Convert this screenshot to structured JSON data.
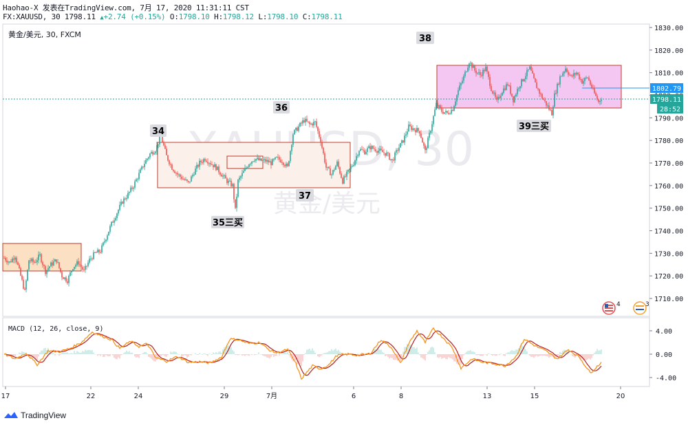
{
  "header": {
    "line1": "Haohao-X 发表在TradingView.com, 7月 17, 2020 11:31:11 CST",
    "symbol_line": "FX:XAUUSD, 30 1798.11",
    "change": "+2.74 (+0.15%)",
    "open_label": "O:",
    "open": "1798.10",
    "high_label": "H:",
    "high": "1798.12",
    "low_label": "L:",
    "low": "1798.10",
    "close_label": "C:",
    "close": "1798.11"
  },
  "pane_title": "黄金/美元, 30, FXCM",
  "watermark": {
    "symbol": "XAUUSD, 30",
    "name": "黄金/美元"
  },
  "price_labels": {
    "alert": "1802.79",
    "current": "1798.11",
    "countdown": "28:52"
  },
  "event_badges": [
    "4",
    "3"
  ],
  "annotations": [
    "34",
    "35三买",
    "36",
    "37",
    "38",
    "39三买"
  ],
  "macd_title": "MACD (12, 26, close, 9)",
  "footer_brand": "TradingView",
  "colors": {
    "up": "#26a69a",
    "down": "#ef5350",
    "box_orange": "#f5c08a",
    "box_pink": "#e879e6",
    "macd": "#f7931a",
    "signal": "#b71c1c"
  },
  "chart_data": [
    {
      "type": "candlestick",
      "title": "黄金/美元, 30, FXCM",
      "y_ticks": [
        "1830.00",
        "1820.00",
        "1810.00",
        "1800.00",
        "1790.00",
        "1780.00",
        "1770.00",
        "1760.00",
        "1750.00",
        "1740.00",
        "1730.00",
        "1720.00",
        "1710.00"
      ],
      "ylim": [
        1700,
        1832
      ],
      "x_ticks": [
        "17",
        "22",
        "24",
        "29",
        "7月",
        "6",
        "8",
        "13",
        "15",
        "20"
      ],
      "price_path": [
        [
          0,
          1728
        ],
        [
          4,
          1726
        ],
        [
          8,
          1729
        ],
        [
          12,
          1720
        ],
        [
          15,
          1713
        ],
        [
          18,
          1727
        ],
        [
          22,
          1726
        ],
        [
          26,
          1729
        ],
        [
          30,
          1722
        ],
        [
          34,
          1725
        ],
        [
          38,
          1727
        ],
        [
          42,
          1720
        ],
        [
          46,
          1718
        ],
        [
          50,
          1724
        ],
        [
          54,
          1726
        ],
        [
          58,
          1722
        ],
        [
          62,
          1727
        ],
        [
          66,
          1730
        ],
        [
          70,
          1731
        ],
        [
          74,
          1737
        ],
        [
          78,
          1743
        ],
        [
          82,
          1748
        ],
        [
          86,
          1753
        ],
        [
          90,
          1756
        ],
        [
          94,
          1760
        ],
        [
          98,
          1765
        ],
        [
          102,
          1770
        ],
        [
          106,
          1774
        ],
        [
          110,
          1776
        ],
        [
          114,
          1782
        ],
        [
          118,
          1773
        ],
        [
          122,
          1768
        ],
        [
          126,
          1765
        ],
        [
          130,
          1763
        ],
        [
          134,
          1761
        ],
        [
          138,
          1766
        ],
        [
          142,
          1770
        ],
        [
          146,
          1772
        ],
        [
          150,
          1770
        ],
        [
          154,
          1768
        ],
        [
          158,
          1765
        ],
        [
          162,
          1762
        ],
        [
          166,
          1760
        ],
        [
          168,
          1749
        ],
        [
          170,
          1762
        ],
        [
          174,
          1766
        ],
        [
          178,
          1770
        ],
        [
          182,
          1772
        ],
        [
          186,
          1771
        ],
        [
          190,
          1771
        ],
        [
          194,
          1770
        ],
        [
          198,
          1772
        ],
        [
          202,
          1771
        ],
        [
          206,
          1768
        ],
        [
          210,
          1783
        ],
        [
          214,
          1786
        ],
        [
          218,
          1789
        ],
        [
          222,
          1787
        ],
        [
          226,
          1788
        ],
        [
          230,
          1780
        ],
        [
          234,
          1768
        ],
        [
          238,
          1765
        ],
        [
          242,
          1770
        ],
        [
          246,
          1762
        ],
        [
          250,
          1766
        ],
        [
          254,
          1770
        ],
        [
          258,
          1776
        ],
        [
          262,
          1775
        ],
        [
          266,
          1777
        ],
        [
          270,
          1776
        ],
        [
          274,
          1775
        ],
        [
          278,
          1774
        ],
        [
          282,
          1771
        ],
        [
          286,
          1776
        ],
        [
          290,
          1780
        ],
        [
          294,
          1786
        ],
        [
          298,
          1785
        ],
        [
          302,
          1784
        ],
        [
          306,
          1775
        ],
        [
          310,
          1785
        ],
        [
          314,
          1796
        ],
        [
          318,
          1793
        ],
        [
          322,
          1792
        ],
        [
          326,
          1794
        ],
        [
          330,
          1802
        ],
        [
          334,
          1808
        ],
        [
          338,
          1815
        ],
        [
          342,
          1811
        ],
        [
          346,
          1809
        ],
        [
          350,
          1812
        ],
        [
          354,
          1803
        ],
        [
          358,
          1797
        ],
        [
          362,
          1802
        ],
        [
          366,
          1805
        ],
        [
          370,
          1798
        ],
        [
          374,
          1804
        ],
        [
          378,
          1808
        ],
        [
          382,
          1812
        ],
        [
          386,
          1805
        ],
        [
          390,
          1800
        ],
        [
          394,
          1796
        ],
        [
          398,
          1792
        ],
        [
          400,
          1800
        ],
        [
          404,
          1808
        ],
        [
          408,
          1812
        ],
        [
          412,
          1808
        ],
        [
          416,
          1810
        ],
        [
          420,
          1806
        ],
        [
          424,
          1808
        ],
        [
          428,
          1802
        ],
        [
          432,
          1797
        ],
        [
          434,
          1799
        ]
      ],
      "macd_ticks": [
        "4.00",
        "0.00",
        "-4.00"
      ],
      "macd_ylim": [
        -6,
        6
      ],
      "macd_path": [
        [
          0,
          0
        ],
        [
          8,
          -0.8
        ],
        [
          16,
          0.2
        ],
        [
          24,
          -1.8
        ],
        [
          32,
          0.6
        ],
        [
          40,
          0.4
        ],
        [
          48,
          1
        ],
        [
          56,
          2
        ],
        [
          64,
          3.8
        ],
        [
          70,
          3.2
        ],
        [
          78,
          2.5
        ],
        [
          84,
          1
        ],
        [
          92,
          2.2
        ],
        [
          98,
          1.3
        ],
        [
          104,
          1.8
        ],
        [
          110,
          -0.6
        ],
        [
          118,
          -1.2
        ],
        [
          126,
          -0.4
        ],
        [
          134,
          -1.4
        ],
        [
          142,
          -1.3
        ],
        [
          150,
          -1.5
        ],
        [
          158,
          -0.5
        ],
        [
          164,
          2.6
        ],
        [
          170,
          2.5
        ],
        [
          178,
          1.8
        ],
        [
          186,
          2
        ],
        [
          192,
          0.8
        ],
        [
          198,
          0.2
        ],
        [
          206,
          0.8
        ],
        [
          212,
          -1.6
        ],
        [
          216,
          -4.2
        ],
        [
          224,
          -2
        ],
        [
          230,
          -2.5
        ],
        [
          236,
          -1.8
        ],
        [
          242,
          -0.2
        ],
        [
          250,
          0
        ],
        [
          258,
          -0.2
        ],
        [
          266,
          0.1
        ],
        [
          274,
          2.5
        ],
        [
          282,
          1
        ],
        [
          288,
          -1.6
        ],
        [
          294,
          1.8
        ],
        [
          300,
          4
        ],
        [
          306,
          2
        ],
        [
          312,
          4.4
        ],
        [
          320,
          2.6
        ],
        [
          326,
          1
        ],
        [
          332,
          -2.4
        ],
        [
          340,
          -0.8
        ],
        [
          348,
          -1.4
        ],
        [
          356,
          -1.6
        ],
        [
          364,
          -2
        ],
        [
          372,
          -0.4
        ],
        [
          378,
          2.6
        ],
        [
          386,
          1.4
        ],
        [
          394,
          0.5
        ],
        [
          402,
          -0.8
        ],
        [
          410,
          0.8
        ],
        [
          418,
          -0.5
        ],
        [
          426,
          -3.2
        ],
        [
          434,
          -1.4
        ]
      ],
      "rectangles": [
        {
          "label": "orange",
          "x": [
            0,
            58
          ],
          "y": [
            1722,
            1734
          ]
        },
        {
          "label": "peach",
          "x": [
            114,
            254
          ],
          "y": [
            1759,
            1779
          ]
        },
        {
          "label": "pink",
          "x": [
            318,
            450
          ],
          "y": [
            1794,
            1813
          ]
        }
      ],
      "alert_level": 1802.79,
      "current_level": 1798.11
    }
  ]
}
